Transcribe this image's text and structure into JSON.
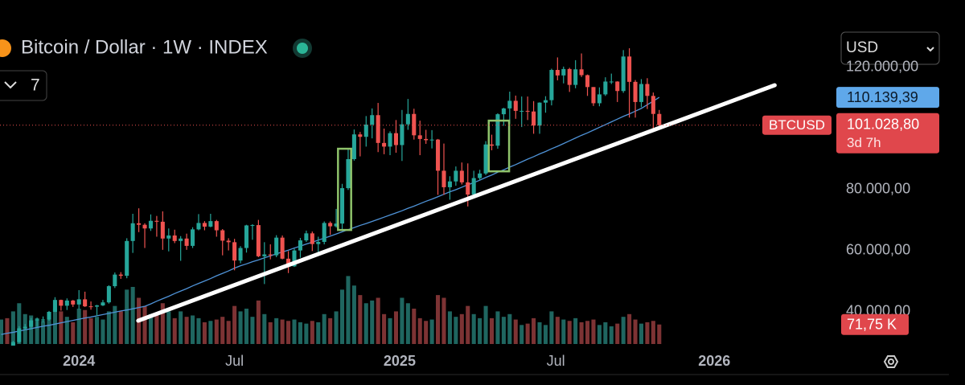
{
  "chart_data": {
    "type": "candlestick",
    "title": "Bitcoin / Dollar · 1W · INDEX",
    "indicator_count": 7,
    "currency": "USD",
    "symbol": "BTCUSD",
    "countdown": "3d 7h",
    "xlim": [
      -0.2,
      139.6
    ],
    "xticks": [
      {
        "value": 13,
        "label": "2024"
      },
      {
        "value": 39,
        "label": "Jul"
      },
      {
        "value": 66.6,
        "label": "2025"
      },
      {
        "value": 92.7,
        "label": "Jul"
      },
      {
        "value": 119.2,
        "label": "2026"
      }
    ],
    "ylim": [
      30000,
      142000
    ],
    "yticks": [
      {
        "value": 40000,
        "label": "40.000,00"
      },
      {
        "value": 60000,
        "label": "60.000,00"
      },
      {
        "value": 80000,
        "label": "80.000,00"
      },
      {
        "value": 120000,
        "label": "120.000,00"
      }
    ],
    "up_color": "#26a69a",
    "down_color": "#ef5350",
    "open": [
      27000,
      27900,
      26900,
      30000,
      34500,
      35000,
      37100,
      37400,
      37400,
      39900,
      43800,
      41900,
      43600,
      42300,
      44000,
      41700,
      41600,
      42000,
      43000,
      48300,
      52100,
      51700,
      63100,
      68900,
      68400,
      67200,
      69700,
      69400,
      63900,
      64900,
      63100,
      63900,
      61500,
      66900,
      69000,
      67800,
      69600,
      66600,
      63200,
      62700,
      56700,
      60800,
      68200,
      68300,
      58100,
      58700,
      58400,
      64200,
      57300,
      54800,
      60000,
      63300,
      65600,
      62100,
      62800,
      69000,
      67900,
      68800,
      80400,
      89900,
      98000,
      97200,
      101200,
      104300,
      95200,
      94000,
      98400,
      94500,
      101300,
      104700,
      97700,
      96500,
      96100,
      96300,
      86100,
      80700,
      82600,
      86100,
      82300,
      78300,
      83700,
      85200,
      94700,
      94300,
      104600,
      106500,
      109000,
      105700,
      105700,
      105500,
      100900,
      108400,
      109200,
      119100,
      117300,
      119400,
      114200,
      119300,
      117400,
      113500,
      108200,
      111100,
      115300,
      115300,
      112200,
      123500,
      115200,
      108600,
      114500,
      110600,
      104700
    ],
    "high": [
      28600,
      28300,
      30400,
      35200,
      35900,
      37900,
      38000,
      38400,
      40200,
      44700,
      43900,
      44300,
      43800,
      47000,
      46500,
      43300,
      42200,
      43800,
      48600,
      52800,
      52900,
      64000,
      72000,
      73800,
      68900,
      71800,
      71300,
      72800,
      67200,
      66800,
      64700,
      65500,
      67600,
      71900,
      69600,
      72000,
      70000,
      67000,
      64000,
      63800,
      61400,
      68400,
      68600,
      70000,
      62700,
      62000,
      65000,
      64900,
      59800,
      60600,
      64100,
      66500,
      66200,
      64500,
      69500,
      69500,
      73600,
      81800,
      93400,
      99600,
      98800,
      104000,
      106500,
      108300,
      99900,
      99000,
      102700,
      106000,
      109600,
      106400,
      102500,
      99500,
      99400,
      96500,
      95000,
      84300,
      87500,
      88800,
      88500,
      86100,
      86400,
      95800,
      97900,
      104900,
      106700,
      112000,
      110700,
      110400,
      110400,
      108900,
      108500,
      110500,
      119500,
      123200,
      120200,
      119800,
      122300,
      124500,
      117600,
      113500,
      113400,
      116700,
      117900,
      115400,
      125600,
      126200,
      115800,
      116100,
      116400,
      111700,
      106000
    ],
    "low": [
      26600,
      26600,
      26800,
      29700,
      33900,
      34100,
      35000,
      36400,
      37000,
      39800,
      40300,
      40500,
      41500,
      40800,
      41500,
      40600,
      38500,
      41800,
      42600,
      47700,
      50700,
      50900,
      59200,
      66000,
      60800,
      66400,
      64500,
      60200,
      59700,
      62400,
      56600,
      60200,
      60800,
      66600,
      66600,
      67600,
      64500,
      58400,
      60000,
      53500,
      55800,
      59300,
      63500,
      57800,
      49000,
      57100,
      57800,
      57100,
      52600,
      54600,
      57600,
      62800,
      59800,
      58900,
      62000,
      65100,
      67500,
      66800,
      79800,
      89400,
      90800,
      94000,
      96700,
      92200,
      91500,
      91200,
      92000,
      89300,
      99500,
      96300,
      91200,
      94900,
      93400,
      78200,
      78200,
      76600,
      81200,
      81600,
      74400,
      77500,
      83000,
      84700,
      92800,
      93300,
      100800,
      101500,
      103100,
      100400,
      102700,
      98200,
      98200,
      105100,
      107500,
      115700,
      114700,
      111900,
      113100,
      116800,
      110600,
      107300,
      107200,
      110600,
      114500,
      108600,
      111600,
      103500,
      103500,
      106900,
      106300,
      98900,
      100300
    ],
    "close": [
      27900,
      26900,
      30000,
      34500,
      35000,
      37100,
      37400,
      37400,
      39900,
      43800,
      41900,
      43600,
      42300,
      44000,
      41700,
      41600,
      42000,
      43000,
      48300,
      52100,
      51700,
      63100,
      68900,
      68400,
      67200,
      69700,
      69400,
      63900,
      64900,
      63100,
      63900,
      61500,
      66900,
      69000,
      67800,
      69600,
      66600,
      63200,
      62700,
      56700,
      60800,
      68200,
      68300,
      58100,
      58700,
      58400,
      64200,
      57300,
      54800,
      60000,
      63300,
      65600,
      62100,
      62800,
      69000,
      67900,
      68800,
      80400,
      89900,
      98000,
      97200,
      101200,
      104300,
      95200,
      94000,
      98400,
      94500,
      101300,
      104700,
      97700,
      96500,
      96100,
      96300,
      86100,
      80700,
      82600,
      86100,
      82300,
      78300,
      83700,
      85200,
      94700,
      94300,
      104600,
      106500,
      109000,
      105700,
      105700,
      105500,
      100900,
      108400,
      109200,
      119100,
      117300,
      119400,
      114200,
      119300,
      117400,
      113500,
      108200,
      111100,
      115300,
      115300,
      112200,
      123500,
      115200,
      108600,
      114500,
      110600,
      104700,
      101028.8
    ],
    "close_label": "101.028,80",
    "volume": {
      "values": [
        90,
        95,
        120,
        150,
        110,
        105,
        95,
        85,
        95,
        130,
        120,
        100,
        80,
        130,
        125,
        95,
        100,
        90,
        120,
        140,
        120,
        200,
        210,
        170,
        140,
        110,
        115,
        150,
        120,
        95,
        120,
        100,
        105,
        95,
        80,
        85,
        90,
        100,
        85,
        140,
        120,
        130,
        100,
        160,
        110,
        80,
        95,
        90,
        85,
        90,
        80,
        75,
        85,
        80,
        110,
        95,
        120,
        200,
        250,
        215,
        180,
        150,
        160,
        170,
        110,
        95,
        120,
        170,
        150,
        130,
        95,
        85,
        90,
        180,
        170,
        120,
        100,
        110,
        140,
        110,
        95,
        140,
        95,
        120,
        100,
        110,
        90,
        70,
        75,
        95,
        80,
        70,
        120,
        100,
        90,
        85,
        95,
        80,
        85,
        90,
        70,
        80,
        65,
        75,
        100,
        110,
        90,
        75,
        80,
        85,
        71.75
      ],
      "last_label": "71,75 K",
      "ylim": [
        0,
        340
      ],
      "up_color": "#1f6660",
      "down_color": "#7d3334"
    },
    "ma": {
      "values": [
        32500,
        32900,
        33200,
        33600,
        34000,
        34400,
        34800,
        35200,
        35500,
        35900,
        36300,
        36700,
        37100,
        37500,
        37900,
        38200,
        38600,
        39000,
        39400,
        39800,
        40200,
        40500,
        40900,
        41300,
        41700,
        42500,
        43400,
        44200,
        45000,
        45900,
        46700,
        47500,
        48400,
        49200,
        50000,
        50800,
        51700,
        52500,
        53300,
        54200,
        55000,
        55600,
        56300,
        56900,
        57600,
        58200,
        58900,
        59500,
        60100,
        60800,
        61400,
        62100,
        62700,
        63400,
        64000,
        64700,
        65400,
        66100,
        66800,
        67500,
        68200,
        68800,
        69500,
        70200,
        70900,
        71600,
        72300,
        73000,
        73800,
        74500,
        75300,
        76100,
        76800,
        77600,
        78400,
        79200,
        79900,
        80700,
        81500,
        82200,
        83000,
        83900,
        84700,
        85600,
        86400,
        87300,
        88100,
        89000,
        89900,
        90700,
        91600,
        92400,
        93300,
        94100,
        95000,
        95900,
        96800,
        97700,
        98500,
        99400,
        100300,
        101200,
        102100,
        103000,
        103900,
        104700,
        105600,
        106500,
        107700,
        108900,
        110139.39
      ],
      "last_label": "110.139,39",
      "color": "#4f93d8"
    },
    "trendline": {
      "x": [
        22.9,
        129.3
      ],
      "y": [
        37000,
        114100
      ],
      "color": "#ffffff"
    },
    "boxes": [
      {
        "x": [
          56.3,
          58.5
        ],
        "y": [
          66700,
          93300
        ]
      },
      {
        "x": [
          81.5,
          84.9
        ],
        "y": [
          85900,
          102500
        ]
      }
    ],
    "box_color": "#8fc36b"
  }
}
